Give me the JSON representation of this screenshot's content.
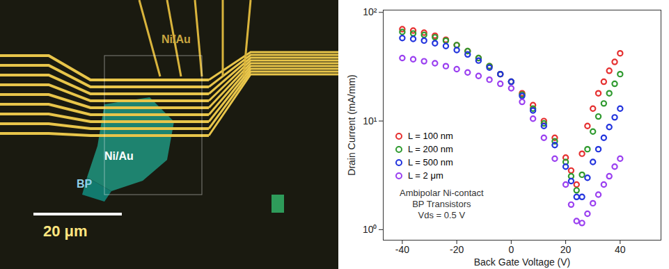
{
  "chart_data": {
    "type": "scatter",
    "x_label": "Back Gate Voltage (V)",
    "y_label": "Drain Current (mA/mm)",
    "x": [
      -40,
      -36,
      -32,
      -28,
      -24,
      -20,
      -16,
      -12,
      -8,
      -4,
      0,
      4,
      8,
      12,
      16,
      20,
      22,
      24,
      26,
      28,
      30,
      32,
      34,
      36,
      38,
      40
    ],
    "series": [
      {
        "name": "L = 100 nm",
        "color": "#e53030",
        "marker": "circle",
        "values": [
          70,
          68,
          65,
          61,
          56,
          50,
          44,
          38,
          32,
          27,
          23,
          18,
          14,
          10,
          7,
          4.6,
          3.5,
          2.6,
          5,
          9,
          13,
          18,
          23,
          29,
          35,
          42
        ]
      },
      {
        "name": "L = 200 nm",
        "color": "#2f9a2f",
        "marker": "circle",
        "values": [
          66,
          64,
          62,
          59,
          55,
          50,
          44,
          38,
          32,
          27,
          23,
          17.5,
          13,
          9.5,
          6.5,
          4.2,
          3.1,
          2.3,
          3.2,
          5.5,
          8,
          11,
          14.5,
          18,
          22,
          27
        ]
      },
      {
        "name": "L = 500 nm",
        "color": "#2233dd",
        "marker": "circle",
        "values": [
          58,
          57,
          55,
          52,
          49,
          45,
          41,
          36,
          31,
          27,
          23,
          17,
          12.5,
          9,
          6,
          3.8,
          2.8,
          2.0,
          2.0,
          3,
          4.2,
          5.5,
          7,
          8.8,
          10.8,
          13
        ]
      },
      {
        "name": "L = 2 μm",
        "color": "#9a3ff0",
        "marker": "circle",
        "values": [
          38,
          37,
          35.5,
          34,
          32,
          30,
          28,
          26,
          24,
          22,
          20,
          15,
          10.5,
          7,
          4.5,
          2.6,
          1.7,
          1.2,
          1.15,
          1.4,
          1.75,
          2.1,
          2.6,
          3.1,
          3.8,
          4.5
        ]
      }
    ],
    "xlim": [
      -47,
      55
    ],
    "ylim": [
      0.8,
      105
    ],
    "xticks": [
      -40,
      -20,
      0,
      20,
      40
    ],
    "yticks": [
      {
        "value": 1,
        "label": "10⁰"
      },
      {
        "value": 10,
        "label": "10¹"
      },
      {
        "value": 100,
        "label": "10²"
      }
    ],
    "log": "y",
    "grid": false,
    "legend": "left",
    "annotations": [
      "Ambipolar Ni-contact",
      "BP Transistors",
      "Vds = 0.5 V"
    ]
  },
  "micrograph": {
    "labels": [
      "Ni/Au",
      "Ni/Au",
      "BP"
    ],
    "scale_bar": "20 μm"
  }
}
